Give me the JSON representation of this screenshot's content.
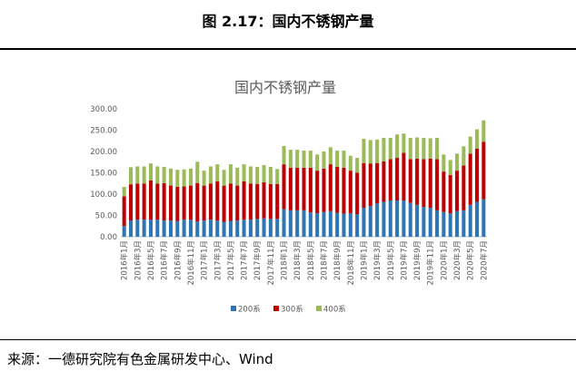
{
  "figure_title": "图 2.17：国内不锈钢产量",
  "source_text": "来源：一德研究院有色金属研发中心、Wind",
  "chart_data": {
    "type": "bar",
    "stacked": true,
    "title": "国内不锈钢产量",
    "xlabel": "",
    "ylabel": "",
    "ylim": [
      0,
      300
    ],
    "yticks": [
      "0.00",
      "50.00",
      "100.00",
      "150.00",
      "200.00",
      "250.00",
      "300.00"
    ],
    "grid": false,
    "legend_position": "bottom",
    "categories": [
      "2016年1月",
      "2016年2月",
      "2016年3月",
      "2016年4月",
      "2016年5月",
      "2016年6月",
      "2016年7月",
      "2016年8月",
      "2016年9月",
      "2016年10月",
      "2016年11月",
      "2016年12月",
      "2017年1月",
      "2017年2月",
      "2017年3月",
      "2017年4月",
      "2017年5月",
      "2017年6月",
      "2017年7月",
      "2017年8月",
      "2017年9月",
      "2017年10月",
      "2017年11月",
      "2017年12月",
      "2018年1月",
      "2018年2月",
      "2018年3月",
      "2018年4月",
      "2018年5月",
      "2018年6月",
      "2018年7月",
      "2018年8月",
      "2018年9月",
      "2018年10月",
      "2018年11月",
      "2018年12月",
      "2019年1月",
      "2019年2月",
      "2019年3月",
      "2019年4月",
      "2019年5月",
      "2019年6月",
      "2019年7月",
      "2019年8月",
      "2019年9月",
      "2019年10月",
      "2019年11月",
      "2019年12月",
      "2020年1月",
      "2020年2月",
      "2020年3月",
      "2020年4月",
      "2020年5月",
      "2020年6月",
      "2020年7月"
    ],
    "tick_labels": [
      "2016年1月",
      "2016年3月",
      "2016年5月",
      "2016年7月",
      "2016年9月",
      "2016年11月",
      "2017年1月",
      "2017年3月",
      "2017年5月",
      "2017年7月",
      "2017年9月",
      "2017年11月",
      "2018年1月",
      "2018年3月",
      "2018年5月",
      "2018年7月",
      "2018年9月",
      "2018年11月",
      "2019年1月",
      "2019年3月",
      "2019年5月",
      "2019年7月",
      "2019年9月",
      "2019年11月",
      "2020年1月",
      "2020年3月",
      "2020年5月",
      "2020年7月"
    ],
    "series": [
      {
        "name": "200系",
        "color": "#2E75B6",
        "values": [
          25,
          38,
          40,
          40,
          40,
          40,
          38,
          38,
          37,
          40,
          40,
          36,
          38,
          40,
          38,
          35,
          37,
          38,
          40,
          40,
          42,
          43,
          42,
          42,
          65,
          62,
          62,
          62,
          57,
          55,
          58,
          60,
          56,
          54,
          55,
          53,
          68,
          72,
          78,
          82,
          85,
          85,
          85,
          80,
          75,
          70,
          68,
          62,
          58,
          55,
          60,
          62,
          75,
          82,
          88
        ]
      },
      {
        "name": "300系",
        "color": "#C00000",
        "values": [
          70,
          85,
          85,
          85,
          92,
          85,
          88,
          82,
          80,
          78,
          80,
          90,
          82,
          85,
          92,
          85,
          88,
          82,
          90,
          85,
          82,
          85,
          82,
          82,
          105,
          100,
          100,
          100,
          105,
          100,
          102,
          110,
          108,
          108,
          100,
          97,
          105,
          100,
          95,
          95,
          97,
          100,
          112,
          102,
          108,
          112,
          115,
          120,
          95,
          90,
          95,
          105,
          120,
          125,
          135
        ]
      },
      {
        "name": "400系",
        "color": "#9BBB59",
        "values": [
          22,
          40,
          40,
          40,
          40,
          40,
          38,
          40,
          40,
          40,
          40,
          50,
          35,
          40,
          40,
          37,
          45,
          42,
          40,
          40,
          40,
          40,
          40,
          35,
          43,
          42,
          42,
          40,
          40,
          38,
          40,
          40,
          38,
          40,
          35,
          35,
          57,
          55,
          55,
          55,
          50,
          55,
          45,
          50,
          50,
          50,
          48,
          50,
          40,
          35,
          40,
          45,
          40,
          45,
          50
        ]
      }
    ]
  }
}
